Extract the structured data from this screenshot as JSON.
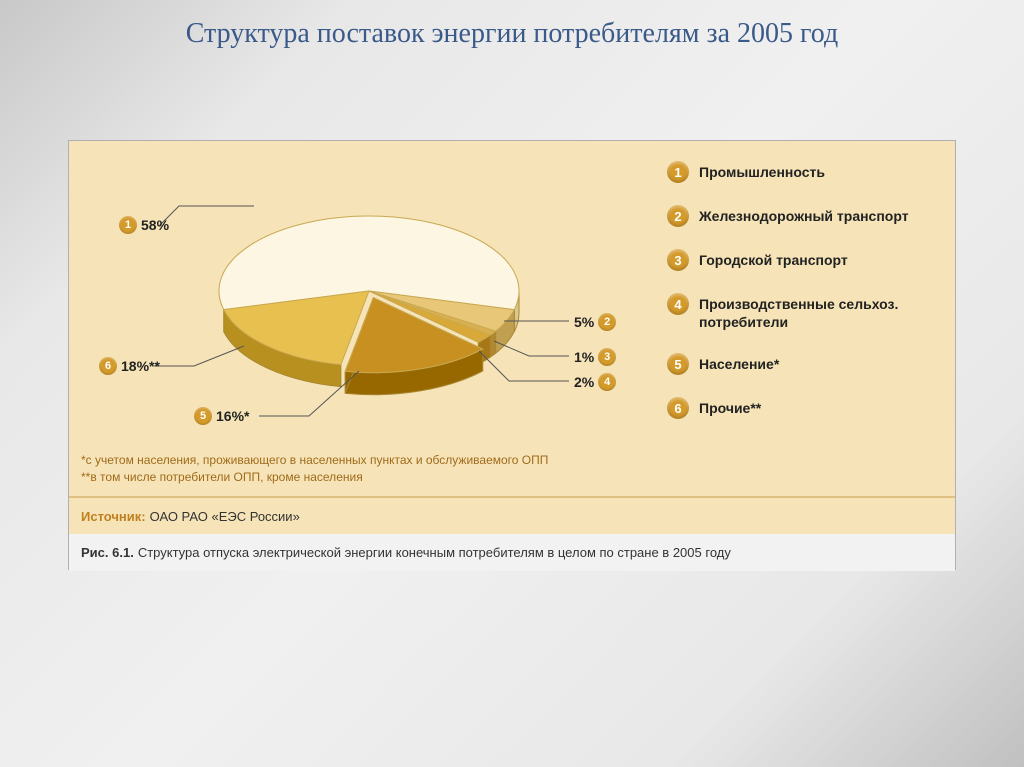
{
  "title": "Структура поставок энергии потребителям за 2005 год",
  "chart": {
    "type": "pie",
    "background_color": "#f6e4b8",
    "slices": [
      {
        "id": 1,
        "label": "Промышленность",
        "pct": 58,
        "pct_label": "58%",
        "color": "#fdf6e3",
        "side_color": "#d8c890"
      },
      {
        "id": 2,
        "label": "Железнодорожный транспорт",
        "pct": 5,
        "pct_label": "5%",
        "color": "#e8c878",
        "side_color": "#c0a050"
      },
      {
        "id": 3,
        "label": "Городской транспорт",
        "pct": 1,
        "pct_label": "1%",
        "color": "#d8b050",
        "side_color": "#b08830"
      },
      {
        "id": 4,
        "label": "Производственные сельхоз. потребители",
        "pct": 2,
        "pct_label": "2%",
        "color": "#d8a838",
        "side_color": "#a87818"
      },
      {
        "id": 5,
        "label": "Население*",
        "pct": 16,
        "pct_label": "16%*",
        "color": "#c89020",
        "side_color": "#986800"
      },
      {
        "id": 6,
        "label": "Прочие**",
        "pct": 18,
        "pct_label": "18%**",
        "color": "#e8c050",
        "side_color": "#b89020"
      }
    ],
    "badge_color": "#d49a2a",
    "badge_text_color": "#ffffff",
    "title_fontsize": 28,
    "title_color": "#3a5a8a",
    "legend_fontsize": 14,
    "callout_fontsize": 13
  },
  "footnotes": {
    "line1": "*с учетом населения, проживающего в населенных пунктах и обслуживаемого ОПП",
    "line2": "**в том числе потребители ОПП, кроме населения"
  },
  "source": {
    "label": "Источник:",
    "text": "ОАО РАО «ЕЭС России»"
  },
  "caption": {
    "label": "Рис. 6.1.",
    "text": "Структура отпуска электрической энергии конечным потребителям в целом по стране в 2005 году"
  }
}
